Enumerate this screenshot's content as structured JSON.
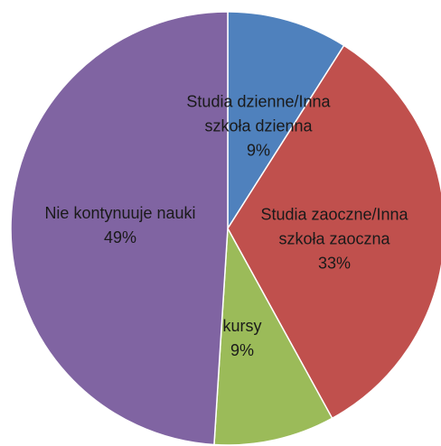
{
  "chart_data": {
    "type": "pie",
    "categories": [
      "Studia dzienne/Inna szkoła dzienna",
      "Studia zaoczne/Inna szkoła zaoczna",
      "kursy",
      "Nie kontynuuje nauki"
    ],
    "values": [
      9,
      33,
      9,
      49
    ],
    "value_labels": [
      "9%",
      "33%",
      "9%",
      "49%"
    ],
    "colors": [
      "#4f81bd",
      "#c0504d",
      "#9bbb59",
      "#8064a2"
    ]
  }
}
